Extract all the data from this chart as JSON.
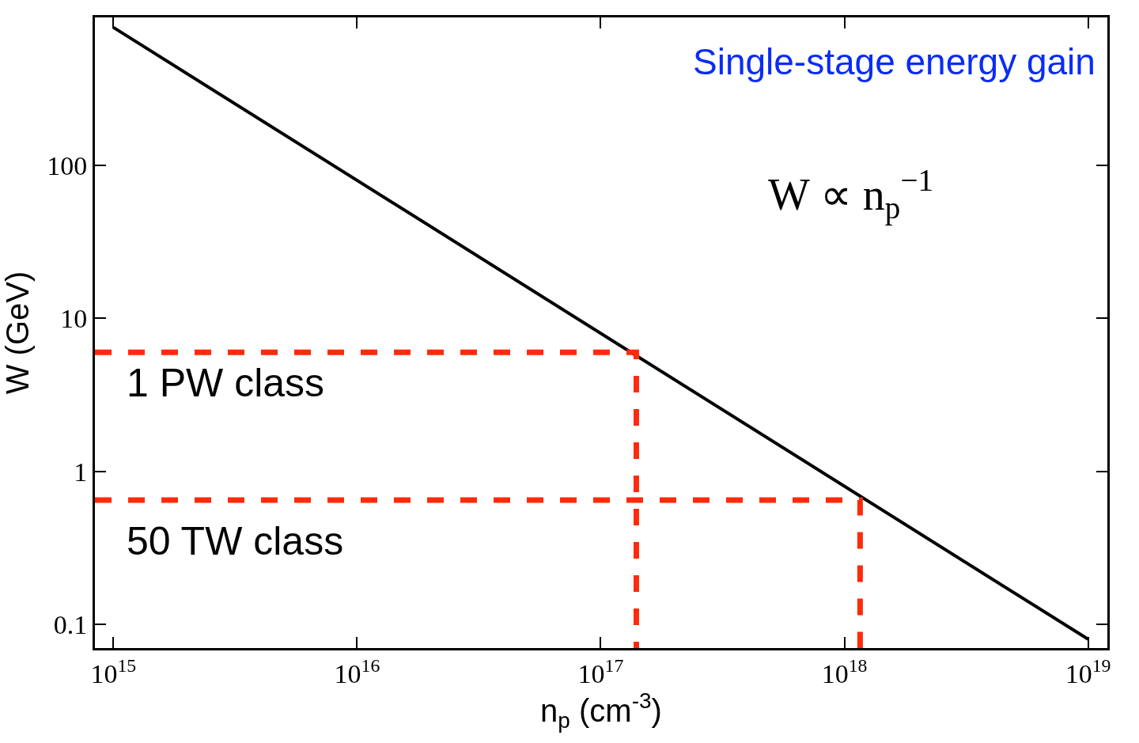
{
  "chart_data": {
    "type": "line",
    "xlabel": "n$_{p}$ (cm$^{-3}$)",
    "ylabel": "W (GeV)",
    "log": "xy",
    "line_style": "solid",
    "marker": "none",
    "xlim": [
      840000000000000.0,
      1.2e+19
    ],
    "ylim": [
      0.07,
      930
    ],
    "xticks": [
      {
        "value": 1000000000000000.0,
        "label": "10$^{15}$"
      },
      {
        "value": 1e+16,
        "label": "10$^{16}$"
      },
      {
        "value": 1e+17,
        "label": "10$^{17}$"
      },
      {
        "value": 1e+18,
        "label": "10$^{18}$"
      },
      {
        "value": 1e+19,
        "label": "10$^{19}$"
      }
    ],
    "yticks": [
      0.1,
      1,
      10,
      100
    ],
    "series": [
      {
        "color": "#000000",
        "x": [
          1000000000000000.0,
          1e+19
        ],
        "values": [
          800,
          0.08
        ]
      },
      {
        "color": "#ff2a0a",
        "line_style": "dashed",
        "x": [
          840000000000000.0,
          1.4e+17,
          1.4e+17
        ],
        "values": [
          6,
          6,
          0.07
        ]
      },
      {
        "color": "#ff2a0a",
        "line_style": "dashed",
        "x": [
          840000000000000.0,
          1.16e+18,
          1.16e+18
        ],
        "values": [
          0.65,
          0.65,
          0.07
        ]
      }
    ],
    "annotations": [
      "Single-stage energy gain",
      "W ∝ n$_{p}$$^{−1}$",
      "1 PW class",
      "50 TW class"
    ]
  }
}
